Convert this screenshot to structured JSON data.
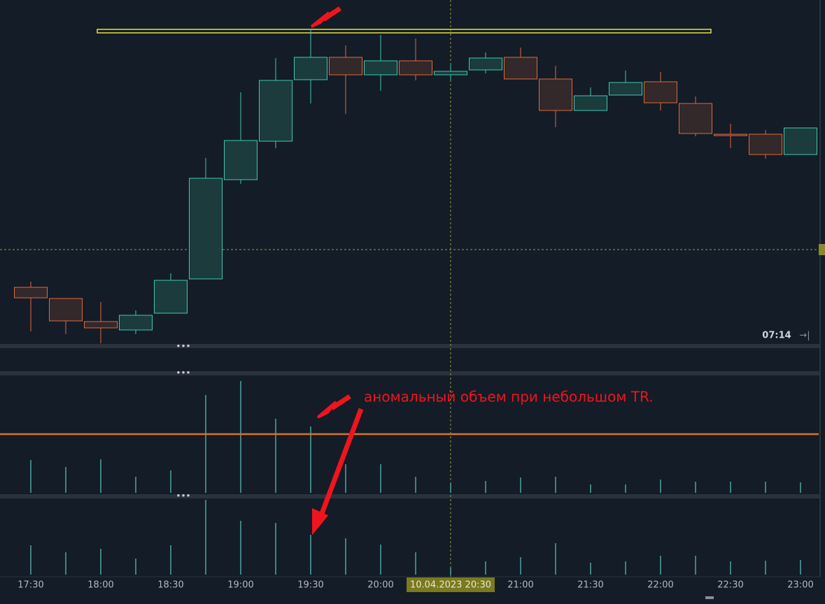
{
  "chart_data": [
    {
      "type": "candlestick",
      "categories": [
        "17:30",
        null,
        "18:00",
        null,
        "18:30",
        null,
        "19:00",
        null,
        "19:30",
        null,
        "20:00",
        null,
        null,
        null,
        "21:00",
        null,
        "21:30",
        null,
        "22:00",
        null,
        "22:30",
        null,
        "23:00"
      ],
      "open": [
        89,
        73,
        40,
        28,
        52,
        101,
        243,
        298,
        386,
        418,
        393,
        413,
        393,
        400,
        418,
        387,
        342,
        364,
        383,
        352,
        308,
        308,
        279
      ],
      "high": [
        97,
        73,
        68,
        56,
        109,
        274,
        368,
        417,
        458,
        435,
        450,
        445,
        408,
        425,
        432,
        406,
        375,
        399,
        397,
        362,
        323,
        314,
        317
      ],
      "low": [
        26,
        22,
        9,
        22,
        52,
        101,
        237,
        288,
        352,
        337,
        370,
        385,
        385,
        395,
        387,
        318,
        342,
        364,
        342,
        305,
        288,
        273,
        279
      ],
      "close": [
        74,
        41,
        31,
        49,
        99,
        245,
        299,
        385,
        418,
        393,
        413,
        393,
        398,
        417,
        387,
        342,
        363,
        382,
        353,
        309,
        306,
        279,
        317
      ],
      "up_color": "#3ec9b0",
      "down_color": "#e0693c",
      "ylim": [
        0,
        500
      ],
      "level": 456,
      "crosshair_value": 143,
      "crosshair_label": "10.04.2023 20:30",
      "timer": "07:14"
    },
    {
      "type": "volume",
      "values": [
        47,
        37,
        48,
        23,
        32,
        140,
        160,
        106,
        95,
        41,
        41,
        23,
        14,
        17,
        22,
        23,
        12,
        12,
        19,
        16,
        16,
        16,
        15
      ],
      "ylim": [
        0,
        165
      ],
      "level": 84,
      "color": "#5fc8c0",
      "annotation": "аномальный объем при небольшом TR."
    },
    {
      "type": "volume",
      "values": [
        42,
        32,
        37,
        23,
        42,
        107,
        77,
        74,
        57,
        52,
        43,
        32,
        10,
        19,
        25,
        45,
        17,
        19,
        27,
        27,
        19,
        20,
        21
      ],
      "ylim": [
        0,
        107
      ],
      "color": "#5fc8c0"
    }
  ]
}
